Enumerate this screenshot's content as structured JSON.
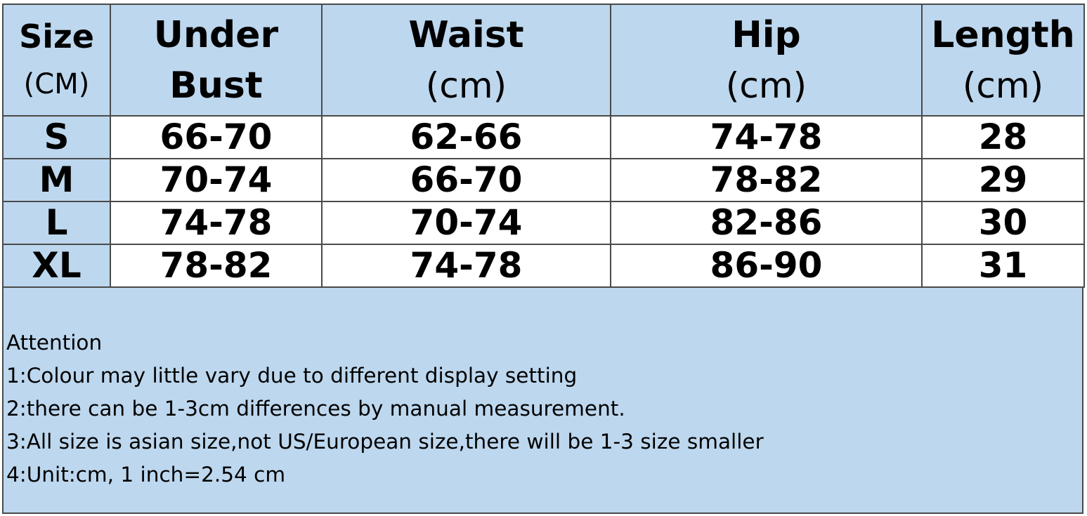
{
  "columns": [
    {
      "main": "Size",
      "sub": "(CM)"
    },
    {
      "main": "Under",
      "sub": "Bust"
    },
    {
      "main": "Waist",
      "sub": "(cm)"
    },
    {
      "main": "Hip",
      "sub": "(cm)"
    },
    {
      "main": "Length",
      "sub": "(cm)"
    }
  ],
  "rows": [
    [
      "S",
      "66-70",
      "62-66",
      "74-78",
      "28"
    ],
    [
      "M",
      "70-74",
      "66-70",
      "78-82",
      "29"
    ],
    [
      "L",
      "74-78",
      "70-74",
      "82-86",
      "30"
    ],
    [
      "XL",
      "78-82",
      "74-78",
      "86-90",
      "31"
    ]
  ],
  "notes": {
    "title": "Attention",
    "items": [
      "1:Colour may little vary due to different display setting",
      "2:there can be 1-3cm differences by manual measurement.",
      "3:All size is asian size,not US/European size,there will be 1-3 size smaller",
      "4:Unit:cm, 1 inch=2.54 cm"
    ]
  },
  "colors": {
    "header_bg": "#bdd7ee",
    "cell_bg": "#ffffff",
    "border": "#4a4a4a"
  }
}
